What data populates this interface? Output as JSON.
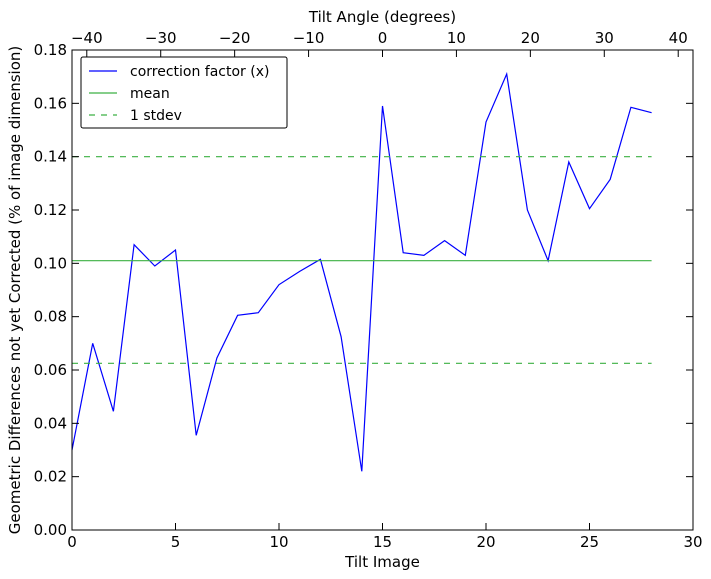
{
  "chart_data": {
    "type": "line",
    "x_axis_bottom": {
      "label": "Tilt Image",
      "range": [
        0,
        30
      ],
      "ticks": [
        0,
        5,
        10,
        15,
        20,
        25,
        30
      ],
      "tick_labels": [
        "0",
        "5",
        "10",
        "15",
        "20",
        "25",
        "30"
      ]
    },
    "x_axis_top": {
      "label": "Tilt Angle (degrees)",
      "range": [
        -42,
        42
      ],
      "ticks": [
        -40,
        -30,
        -20,
        -10,
        0,
        10,
        20,
        30,
        40
      ],
      "tick_labels": [
        "−40",
        "−30",
        "−20",
        "−10",
        "0",
        "10",
        "20",
        "30",
        "40"
      ]
    },
    "y_axis": {
      "label": "Geometric Differences not yet Corrected (% of image dimension)",
      "range": [
        0,
        0.18
      ],
      "ticks": [
        0,
        0.02,
        0.04,
        0.06,
        0.08,
        0.1,
        0.12,
        0.14,
        0.16,
        0.18
      ],
      "tick_labels": [
        "0.00",
        "0.02",
        "0.04",
        "0.06",
        "0.08",
        "0.10",
        "0.12",
        "0.14",
        "0.16",
        "0.18"
      ]
    },
    "series": [
      {
        "name": "correction factor (x)",
        "color": "#0000ff",
        "style": "solid",
        "x": [
          0,
          1,
          2,
          3,
          4,
          5,
          6,
          7,
          8,
          9,
          10,
          11,
          12,
          13,
          14,
          15,
          16,
          17,
          18,
          19,
          20,
          21,
          22,
          23,
          24,
          25,
          26,
          27,
          28
        ],
        "y": [
          0.03,
          0.07,
          0.0445,
          0.107,
          0.099,
          0.105,
          0.0355,
          0.0645,
          0.0805,
          0.0815,
          0.092,
          0.097,
          0.1015,
          0.0725,
          0.022,
          0.159,
          0.104,
          0.103,
          0.1085,
          0.103,
          0.153,
          0.171,
          0.12,
          0.101,
          0.138,
          0.1205,
          0.1315,
          0.1585,
          0.1565
        ]
      },
      {
        "name": "mean",
        "color": "#3cb043",
        "style": "solid",
        "x": [
          0,
          28
        ],
        "y": [
          0.101,
          0.101
        ]
      },
      {
        "name": "1 stdev",
        "color": "#3cb043",
        "style": "dashed",
        "segments": [
          {
            "x": [
              0,
              28
            ],
            "y": [
              0.14,
              0.14
            ]
          },
          {
            "x": [
              0,
              28
            ],
            "y": [
              0.0625,
              0.0625
            ]
          }
        ]
      }
    ],
    "legend": {
      "placement": "upper-left",
      "entries": [
        "correction factor (x)",
        "mean",
        "1 stdev"
      ]
    },
    "grid": false
  }
}
